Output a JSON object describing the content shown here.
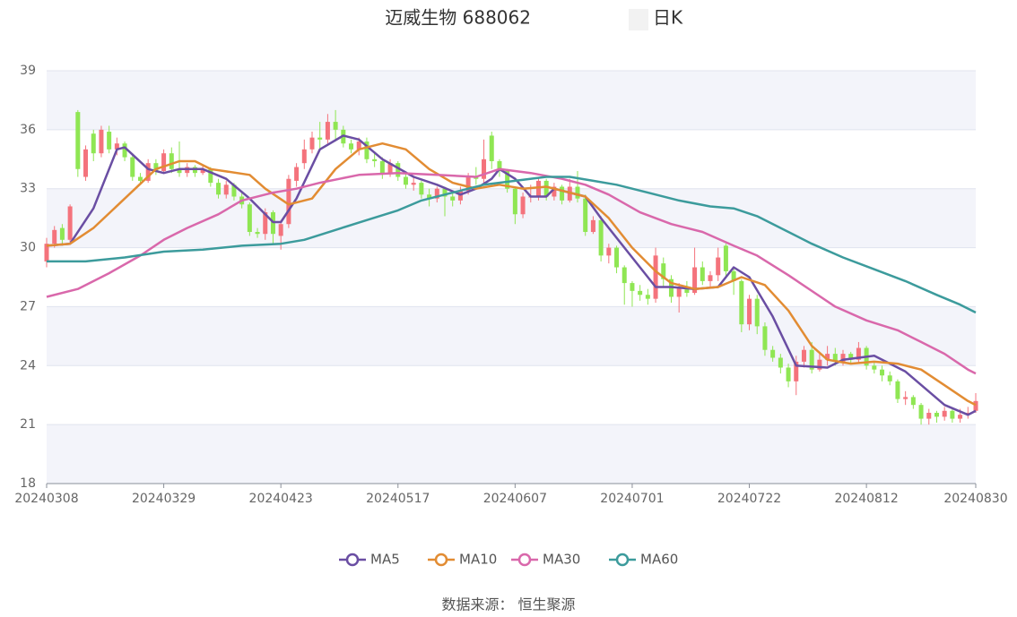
{
  "chart_data": {
    "type": "candlestick",
    "title": "迈威生物 688062",
    "subtitle": "日K",
    "source": "数据来源： 恒生聚源",
    "up_color": "#f4737c",
    "down_color": "#8fe653",
    "categories": [
      "20240308",
      null,
      null,
      null,
      null,
      null,
      null,
      null,
      null,
      null,
      null,
      null,
      null,
      null,
      null,
      "20240329",
      null,
      null,
      null,
      null,
      null,
      null,
      null,
      null,
      null,
      null,
      null,
      null,
      null,
      null,
      "20240423",
      null,
      null,
      null,
      null,
      null,
      null,
      null,
      null,
      null,
      null,
      null,
      null,
      null,
      null,
      "20240517",
      null,
      null,
      null,
      null,
      null,
      null,
      null,
      null,
      null,
      null,
      null,
      null,
      null,
      null,
      "20240607",
      null,
      null,
      null,
      null,
      null,
      null,
      null,
      null,
      null,
      null,
      null,
      null,
      null,
      null,
      "20240701",
      null,
      null,
      null,
      null,
      null,
      null,
      null,
      null,
      null,
      null,
      null,
      null,
      null,
      null,
      "20240722",
      null,
      null,
      null,
      null,
      null,
      null,
      null,
      null,
      null,
      null,
      null,
      null,
      null,
      null,
      "20240812",
      null,
      null,
      null,
      null,
      null,
      null,
      null,
      null,
      null,
      null,
      null,
      null,
      null,
      "20240830"
    ],
    "ohlc": [
      [
        29.3,
        30.2,
        29.0,
        30.5
      ],
      [
        30.2,
        30.9,
        30.0,
        31.1
      ],
      [
        31.0,
        30.4,
        30.1,
        31.2
      ],
      [
        30.4,
        32.1,
        30.3,
        32.2
      ],
      [
        36.9,
        34.0,
        33.6,
        37.0
      ],
      [
        33.6,
        35.0,
        33.4,
        35.2
      ],
      [
        35.8,
        34.8,
        34.4,
        36.0
      ],
      [
        34.8,
        36.0,
        34.6,
        36.2
      ],
      [
        35.9,
        35.0,
        34.8,
        36.2
      ],
      [
        35.0,
        35.3,
        34.7,
        35.6
      ],
      [
        35.3,
        34.6,
        34.4,
        35.4
      ],
      [
        34.6,
        33.6,
        33.4,
        34.8
      ],
      [
        33.6,
        33.4,
        33.2,
        33.8
      ],
      [
        33.4,
        34.3,
        33.3,
        34.5
      ],
      [
        34.3,
        33.9,
        33.7,
        34.5
      ],
      [
        33.9,
        34.8,
        33.8,
        35.0
      ],
      [
        34.8,
        34.0,
        33.8,
        35.1
      ],
      [
        34.0,
        33.8,
        33.6,
        35.4
      ],
      [
        33.8,
        34.1,
        33.6,
        34.3
      ],
      [
        34.1,
        33.8,
        33.6,
        34.2
      ],
      [
        33.8,
        34.0,
        33.7,
        34.2
      ],
      [
        34.0,
        33.3,
        33.1,
        34.1
      ],
      [
        33.3,
        32.7,
        32.5,
        33.5
      ],
      [
        32.7,
        33.2,
        32.5,
        33.4
      ],
      [
        33.2,
        32.6,
        32.4,
        33.3
      ],
      [
        32.6,
        32.2,
        32.0,
        32.8
      ],
      [
        32.2,
        30.8,
        30.6,
        32.3
      ],
      [
        30.8,
        30.7,
        30.5,
        31.0
      ],
      [
        30.7,
        31.8,
        30.4,
        32.0
      ],
      [
        31.8,
        30.7,
        30.2,
        31.9
      ],
      [
        30.6,
        31.2,
        29.9,
        31.4
      ],
      [
        31.2,
        33.5,
        31.0,
        33.7
      ],
      [
        33.4,
        34.1,
        33.1,
        34.3
      ],
      [
        34.3,
        35.0,
        34.0,
        35.5
      ],
      [
        35.0,
        35.6,
        34.8,
        35.9
      ],
      [
        35.6,
        35.5,
        35.0,
        36.4
      ],
      [
        35.5,
        36.4,
        35.3,
        36.8
      ],
      [
        36.4,
        36.0,
        35.4,
        37.0
      ],
      [
        36.0,
        35.3,
        35.1,
        36.2
      ],
      [
        35.3,
        35.0,
        34.8,
        35.5
      ],
      [
        35.0,
        35.4,
        34.7,
        35.6
      ],
      [
        35.4,
        34.5,
        34.3,
        35.6
      ],
      [
        34.5,
        34.4,
        34.1,
        34.9
      ],
      [
        34.4,
        33.8,
        33.5,
        34.6
      ],
      [
        33.8,
        34.3,
        33.6,
        34.5
      ],
      [
        34.3,
        33.6,
        33.4,
        34.4
      ],
      [
        33.6,
        33.2,
        33.0,
        33.8
      ],
      [
        33.2,
        33.3,
        32.9,
        33.6
      ],
      [
        33.3,
        32.7,
        32.5,
        33.4
      ],
      [
        32.7,
        32.5,
        32.1,
        33.0
      ],
      [
        32.5,
        33.0,
        32.3,
        33.1
      ],
      [
        33.0,
        32.6,
        31.6,
        33.1
      ],
      [
        32.6,
        32.4,
        32.1,
        32.8
      ],
      [
        32.4,
        32.9,
        32.2,
        33.1
      ],
      [
        32.9,
        33.6,
        32.7,
        33.8
      ],
      [
        33.6,
        33.5,
        33.2,
        34.1
      ],
      [
        33.5,
        34.5,
        33.3,
        35.5
      ],
      [
        35.7,
        34.4,
        34.0,
        35.9
      ],
      [
        34.4,
        33.9,
        33.6,
        34.5
      ],
      [
        33.9,
        33.0,
        32.8,
        34.0
      ],
      [
        33.0,
        31.7,
        31.2,
        33.1
      ],
      [
        31.7,
        32.6,
        31.5,
        32.8
      ],
      [
        32.6,
        32.6,
        32.3,
        33.2
      ],
      [
        32.6,
        33.4,
        32.4,
        33.6
      ],
      [
        33.4,
        32.6,
        32.4,
        33.5
      ],
      [
        32.6,
        33.1,
        32.4,
        33.3
      ],
      [
        33.1,
        32.4,
        32.2,
        33.2
      ],
      [
        32.4,
        33.1,
        32.3,
        33.5
      ],
      [
        33.1,
        32.5,
        32.3,
        33.9
      ],
      [
        32.5,
        30.8,
        30.6,
        32.7
      ],
      [
        30.8,
        31.4,
        30.7,
        31.6
      ],
      [
        31.4,
        29.6,
        29.3,
        31.6
      ],
      [
        29.6,
        30.0,
        29.2,
        30.2
      ],
      [
        30.0,
        29.0,
        28.7,
        30.1
      ],
      [
        29.0,
        28.2,
        27.1,
        29.1
      ],
      [
        28.2,
        27.8,
        27.0,
        28.3
      ],
      [
        27.8,
        27.6,
        27.3,
        28.1
      ],
      [
        27.6,
        27.4,
        27.1,
        27.9
      ],
      [
        27.4,
        29.6,
        27.2,
        30.0
      ],
      [
        29.2,
        28.4,
        28.0,
        29.5
      ],
      [
        28.4,
        27.5,
        27.2,
        28.6
      ],
      [
        27.5,
        28.0,
        26.7,
        28.2
      ],
      [
        28.0,
        27.7,
        27.5,
        28.3
      ],
      [
        27.7,
        29.0,
        27.6,
        30.0
      ],
      [
        29.0,
        28.3,
        28.1,
        29.3
      ],
      [
        28.3,
        28.6,
        27.9,
        28.8
      ],
      [
        28.6,
        29.5,
        28.3,
        30.0
      ],
      [
        30.1,
        28.8,
        28.5,
        30.2
      ],
      [
        28.8,
        28.3,
        27.6,
        29.0
      ],
      [
        28.3,
        26.1,
        25.7,
        28.4
      ],
      [
        26.1,
        27.4,
        25.8,
        27.6
      ],
      [
        27.4,
        26.0,
        25.6,
        27.6
      ],
      [
        26.0,
        24.8,
        24.5,
        26.2
      ],
      [
        24.8,
        24.4,
        24.2,
        25.0
      ],
      [
        24.4,
        23.9,
        23.6,
        24.6
      ],
      [
        23.9,
        23.2,
        22.9,
        24.1
      ],
      [
        23.2,
        24.2,
        22.5,
        24.5
      ],
      [
        24.2,
        24.8,
        23.9,
        25.0
      ],
      [
        24.8,
        23.8,
        23.6,
        25.2
      ],
      [
        23.8,
        24.3,
        23.7,
        24.6
      ],
      [
        24.3,
        24.6,
        24.0,
        25.0
      ],
      [
        24.6,
        24.2,
        24.0,
        24.9
      ],
      [
        24.2,
        24.6,
        24.0,
        24.8
      ],
      [
        24.6,
        24.3,
        24.1,
        24.7
      ],
      [
        24.3,
        24.9,
        24.1,
        25.2
      ],
      [
        24.9,
        24.0,
        23.8,
        25.0
      ],
      [
        24.0,
        23.8,
        23.6,
        24.2
      ],
      [
        23.8,
        23.5,
        23.2,
        24.0
      ],
      [
        23.5,
        23.2,
        23.0,
        23.7
      ],
      [
        23.2,
        22.3,
        22.1,
        23.3
      ],
      [
        22.3,
        22.4,
        22.0,
        22.7
      ],
      [
        22.4,
        22.0,
        21.8,
        22.5
      ],
      [
        22.0,
        21.3,
        21.0,
        22.1
      ],
      [
        21.3,
        21.6,
        21.0,
        21.8
      ],
      [
        21.6,
        21.4,
        21.1,
        21.7
      ],
      [
        21.4,
        21.7,
        21.2,
        21.9
      ],
      [
        21.7,
        21.3,
        21.1,
        21.8
      ],
      [
        21.3,
        21.5,
        21.1,
        21.8
      ],
      [
        21.5,
        21.6,
        21.3,
        21.9
      ],
      [
        21.7,
        22.2,
        21.6,
        22.6
      ]
    ],
    "series": [
      {
        "name": "MA5",
        "color": "#6a4ea3",
        "x": [
          0,
          3,
          6,
          9,
          10,
          13,
          15,
          17,
          20,
          23,
          26,
          29,
          30,
          32,
          35,
          38,
          40,
          43,
          47,
          50,
          53,
          55,
          57,
          58,
          60,
          62,
          64,
          65,
          69,
          71,
          75,
          78,
          80,
          83,
          86,
          88,
          90,
          93,
          96,
          100,
          102,
          106,
          110,
          115,
          118,
          119
        ],
        "values": [
          30.1,
          30.2,
          32.0,
          35.0,
          35.1,
          34.0,
          33.8,
          34.0,
          34.0,
          33.5,
          32.5,
          31.3,
          31.3,
          32.5,
          35.0,
          35.7,
          35.5,
          34.5,
          33.6,
          33.2,
          32.7,
          33.0,
          33.5,
          34.0,
          33.5,
          32.6,
          32.6,
          33.0,
          32.6,
          31.5,
          29.5,
          28.0,
          28.0,
          27.9,
          28.0,
          29.0,
          28.5,
          26.5,
          24.0,
          23.9,
          24.3,
          24.5,
          23.7,
          22.0,
          21.5,
          21.7
        ]
      },
      {
        "name": "MA10",
        "color": "#e28c33",
        "x": [
          0,
          3,
          6,
          10,
          14,
          17,
          19,
          21,
          26,
          28,
          31,
          34,
          37,
          40,
          43,
          46,
          49,
          52,
          55,
          58,
          61,
          64,
          67,
          69,
          72,
          75,
          78,
          80,
          83,
          86,
          89,
          92,
          95,
          98,
          100,
          103,
          106,
          109,
          112,
          115,
          118,
          119
        ],
        "values": [
          30.1,
          30.2,
          31.0,
          32.5,
          34.0,
          34.4,
          34.4,
          34.0,
          33.7,
          33.0,
          32.2,
          32.5,
          34.0,
          35.0,
          35.3,
          35.0,
          34.0,
          33.3,
          33.0,
          33.2,
          33.0,
          33.1,
          32.8,
          32.6,
          31.5,
          30.0,
          28.8,
          28.2,
          27.9,
          28.0,
          28.5,
          28.1,
          26.8,
          25.0,
          24.3,
          24.1,
          24.2,
          24.1,
          23.8,
          23.0,
          22.2,
          22.0
        ]
      },
      {
        "name": "MA30",
        "color": "#d968ab",
        "x": [
          0,
          4,
          8,
          12,
          15,
          18,
          22,
          25,
          29,
          32,
          35,
          40,
          45,
          50,
          55,
          58,
          62,
          66,
          69,
          72,
          76,
          80,
          84,
          88,
          91,
          95,
          98,
          101,
          105,
          109,
          112,
          115,
          118,
          119
        ],
        "values": [
          27.5,
          27.9,
          28.7,
          29.6,
          30.4,
          31.0,
          31.7,
          32.4,
          32.8,
          33.0,
          33.3,
          33.7,
          33.8,
          33.7,
          33.6,
          34.0,
          33.8,
          33.5,
          33.2,
          32.7,
          31.8,
          31.2,
          30.8,
          30.1,
          29.6,
          28.6,
          27.8,
          27.0,
          26.3,
          25.8,
          25.2,
          24.6,
          23.8,
          23.6
        ]
      },
      {
        "name": "MA60",
        "color": "#3c9b9c",
        "x": [
          0,
          5,
          10,
          15,
          20,
          25,
          30,
          33,
          37,
          41,
          45,
          48,
          52,
          56,
          60,
          64,
          67,
          70,
          73,
          77,
          81,
          85,
          88,
          91,
          95,
          98,
          102,
          106,
          110,
          114,
          117,
          119
        ],
        "values": [
          29.3,
          29.3,
          29.5,
          29.8,
          29.9,
          30.1,
          30.2,
          30.4,
          30.9,
          31.4,
          31.9,
          32.4,
          32.8,
          33.2,
          33.4,
          33.6,
          33.6,
          33.4,
          33.2,
          32.8,
          32.4,
          32.1,
          32.0,
          31.6,
          30.8,
          30.2,
          29.5,
          28.9,
          28.3,
          27.6,
          27.1,
          26.7
        ]
      }
    ],
    "ylim": [
      18,
      39
    ],
    "yticks": [
      18,
      21,
      24,
      27,
      30,
      33,
      36,
      39
    ],
    "grid": true
  }
}
